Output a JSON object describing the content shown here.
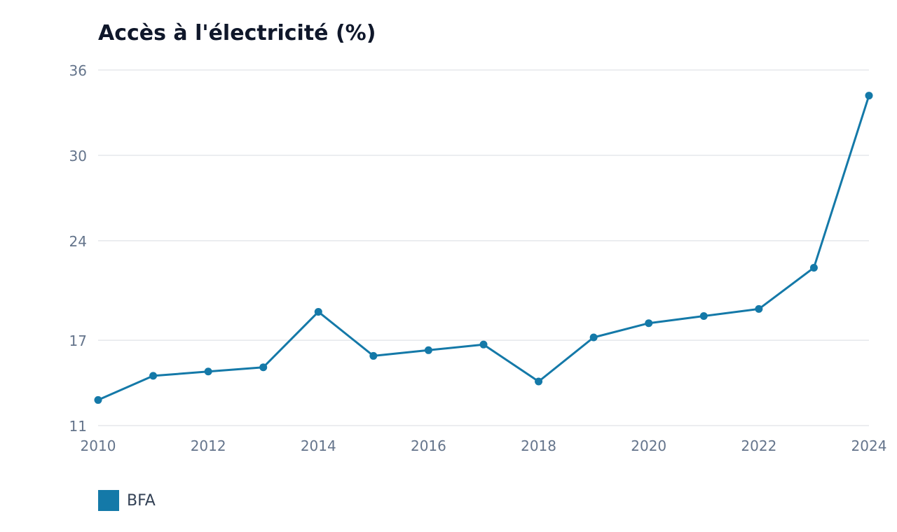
{
  "chart_data": {
    "type": "line",
    "title": "Accès à l'électricité (%)",
    "xlabel": "",
    "ylabel": "",
    "x": [
      2010,
      2011,
      2012,
      2013,
      2014,
      2015,
      2016,
      2017,
      2018,
      2019,
      2020,
      2021,
      2022,
      2023,
      2024
    ],
    "x_ticks": [
      "2010",
      "2012",
      "2014",
      "2016",
      "2018",
      "2020",
      "2022",
      "2024"
    ],
    "y_ticks": [
      "11",
      "17",
      "24",
      "30",
      "36"
    ],
    "ylim": [
      11,
      36
    ],
    "xlim": [
      2010,
      2024
    ],
    "grid": true,
    "legend_position": "bottom-left",
    "series": [
      {
        "name": "BFA",
        "color": "#1479a8",
        "values": [
          12.8,
          14.5,
          14.8,
          15.1,
          19.0,
          15.9,
          16.3,
          16.7,
          14.1,
          17.2,
          18.2,
          18.7,
          19.2,
          22.1,
          34.2
        ]
      }
    ]
  }
}
